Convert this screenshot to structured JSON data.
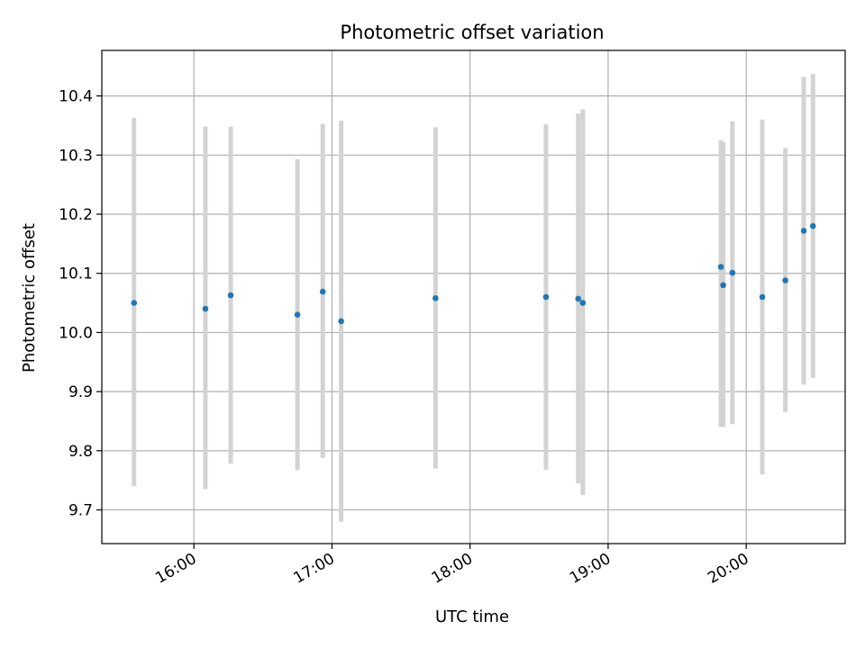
{
  "chart_data": {
    "type": "scatter",
    "title": "Photometric offset variation",
    "xlabel": "UTC time",
    "ylabel": "Photometric offset",
    "x_unit": "hours (UTC)",
    "xlim": [
      "15:20",
      "20:43"
    ],
    "ylim": [
      9.643,
      10.477
    ],
    "grid": true,
    "x_ticks": [
      "16:00",
      "17:00",
      "18:00",
      "19:00",
      "20:00"
    ],
    "y_ticks": [
      "9.7",
      "9.8",
      "9.9",
      "10.0",
      "10.1",
      "10.2",
      "10.3",
      "10.4"
    ],
    "points_color": "#1f77b4",
    "errorbar_color": "#d3d3d3",
    "points": [
      {
        "t": "15:34",
        "y": 10.05,
        "low": 9.74,
        "high": 10.363
      },
      {
        "t": "16:05",
        "y": 10.04,
        "low": 9.735,
        "high": 10.348
      },
      {
        "t": "16:16",
        "y": 10.063,
        "low": 9.778,
        "high": 10.348
      },
      {
        "t": "16:45",
        "y": 10.03,
        "low": 9.767,
        "high": 10.293
      },
      {
        "t": "16:56",
        "y": 10.069,
        "low": 9.788,
        "high": 10.353
      },
      {
        "t": "17:04",
        "y": 10.019,
        "low": 9.68,
        "high": 10.358
      },
      {
        "t": "17:45",
        "y": 10.058,
        "low": 9.77,
        "high": 10.347
      },
      {
        "t": "18:33",
        "y": 10.06,
        "low": 9.768,
        "high": 10.352
      },
      {
        "t": "18:47",
        "y": 10.057,
        "low": 9.745,
        "high": 10.37
      },
      {
        "t": "18:49",
        "y": 10.05,
        "low": 9.725,
        "high": 10.377
      },
      {
        "t": "19:49",
        "y": 10.111,
        "low": 9.84,
        "high": 10.325
      },
      {
        "t": "19:50",
        "y": 10.08,
        "low": 9.84,
        "high": 10.322
      },
      {
        "t": "19:54",
        "y": 10.101,
        "low": 9.845,
        "high": 10.357
      },
      {
        "t": "20:07",
        "y": 10.06,
        "low": 9.76,
        "high": 10.36
      },
      {
        "t": "20:17",
        "y": 10.088,
        "low": 9.865,
        "high": 10.312
      },
      {
        "t": "20:25",
        "y": 10.172,
        "low": 9.912,
        "high": 10.432
      },
      {
        "t": "20:29",
        "y": 10.18,
        "low": 9.923,
        "high": 10.437
      }
    ]
  }
}
